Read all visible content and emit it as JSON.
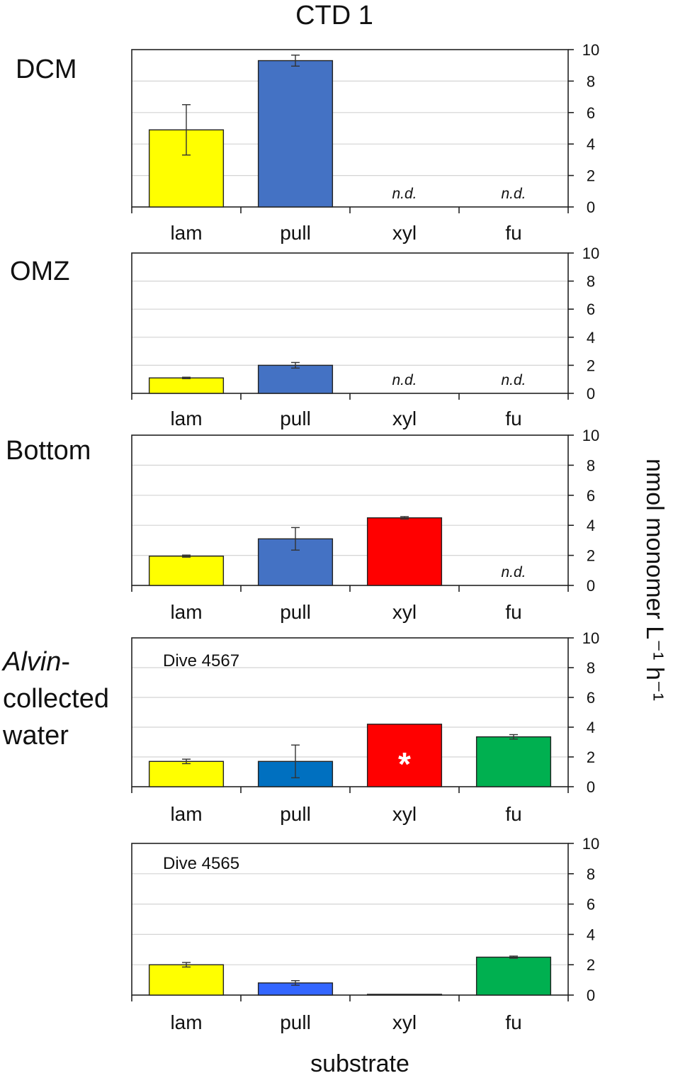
{
  "figure": {
    "title": "CTD 1",
    "ylabel": "nmol monomer L⁻¹ h⁻¹",
    "xlabel": "substrate"
  },
  "chart_data": [
    {
      "type": "bar",
      "title": "DCM",
      "categories": [
        "lam",
        "pull",
        "xyl",
        "fu"
      ],
      "values": [
        4.9,
        9.3,
        0,
        0
      ],
      "errors": [
        1.6,
        0.35,
        0,
        0
      ],
      "colors": [
        "#ffff00",
        "#4472c4",
        "#ff0000",
        "#00b050"
      ],
      "annotations": [
        "",
        "",
        "n.d.",
        "n.d."
      ],
      "ylim": [
        0,
        10
      ],
      "yticks": [
        0,
        2,
        4,
        6,
        8,
        10
      ],
      "xlabel": "",
      "ylabel": ""
    },
    {
      "type": "bar",
      "title": "OMZ",
      "categories": [
        "lam",
        "pull",
        "xyl",
        "fu"
      ],
      "values": [
        1.1,
        2.0,
        0,
        0
      ],
      "errors": [
        0.05,
        0.2,
        0,
        0
      ],
      "colors": [
        "#ffff00",
        "#4472c4",
        "#ff0000",
        "#00b050"
      ],
      "annotations": [
        "",
        "",
        "n.d.",
        "n.d."
      ],
      "ylim": [
        0,
        10
      ],
      "yticks": [
        0,
        2,
        4,
        6,
        8,
        10
      ],
      "xlabel": "",
      "ylabel": ""
    },
    {
      "type": "bar",
      "title": "Bottom",
      "categories": [
        "lam",
        "pull",
        "xyl",
        "fu"
      ],
      "values": [
        1.95,
        3.1,
        4.5,
        0
      ],
      "errors": [
        0.07,
        0.75,
        0.08,
        0
      ],
      "colors": [
        "#ffff00",
        "#4472c4",
        "#ff0000",
        "#00b050"
      ],
      "annotations": [
        "",
        "",
        "",
        "n.d."
      ],
      "ylim": [
        0,
        10
      ],
      "yticks": [
        0,
        2,
        4,
        6,
        8,
        10
      ],
      "xlabel": "",
      "ylabel": ""
    },
    {
      "type": "bar",
      "title": "Alvin-collected water",
      "subtitle": "Dive  4567",
      "categories": [
        "lam",
        "pull",
        "xyl",
        "fu"
      ],
      "values": [
        1.7,
        1.7,
        4.2,
        3.35
      ],
      "errors": [
        0.15,
        1.1,
        0,
        0.15
      ],
      "colors": [
        "#ffff00",
        "#0070c0",
        "#ff0000",
        "#00b050"
      ],
      "annotations": [
        "",
        "",
        "*",
        ""
      ],
      "ylim": [
        0,
        10
      ],
      "yticks": [
        0,
        2,
        4,
        6,
        8,
        10
      ],
      "xlabel": "",
      "ylabel": ""
    },
    {
      "type": "bar",
      "title": "",
      "subtitle": "Dive  4565",
      "categories": [
        "lam",
        "pull",
        "xyl",
        "fu"
      ],
      "values": [
        2.0,
        0.8,
        0.05,
        2.5
      ],
      "errors": [
        0.15,
        0.15,
        0,
        0.07
      ],
      "colors": [
        "#ffff00",
        "#3366ff",
        "#ff0000",
        "#00b050"
      ],
      "annotations": [
        "",
        "",
        "",
        ""
      ],
      "ylim": [
        0,
        10
      ],
      "yticks": [
        0,
        2,
        4,
        6,
        8,
        10
      ],
      "xlabel": "",
      "ylabel": ""
    }
  ]
}
